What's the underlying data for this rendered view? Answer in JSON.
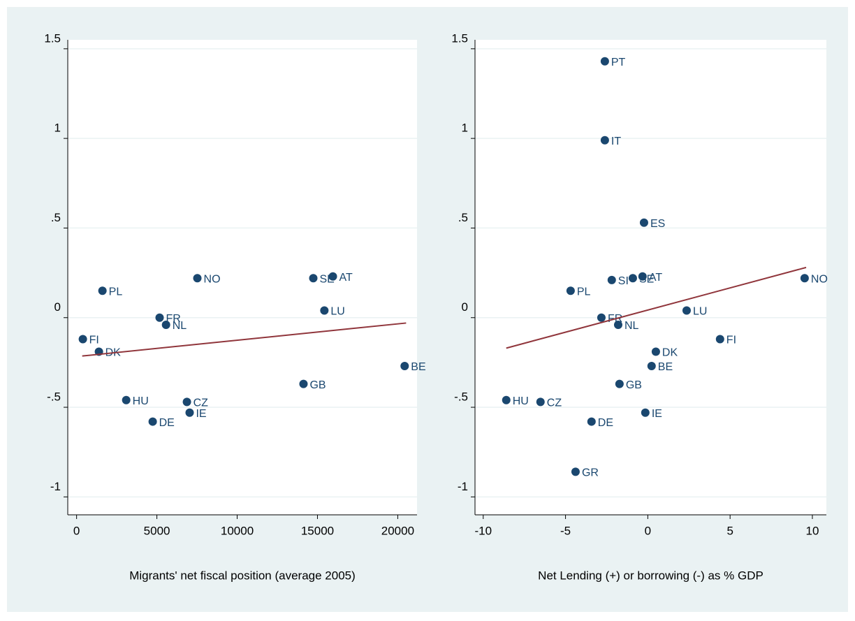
{
  "chart_data": [
    {
      "type": "scatter",
      "xlabel": "Migrants' net fiscal position (average 2005)",
      "xlim": [
        -550,
        21200
      ],
      "ylim": [
        -1.1,
        1.55
      ],
      "xticks": [
        0,
        5000,
        10000,
        15000,
        20000
      ],
      "yticks": [
        {
          "value": -1,
          "label": "-1"
        },
        {
          "value": -0.5,
          "label": "-.5"
        },
        0,
        {
          "value": 0.5,
          "label": ".5"
        },
        1,
        1.5
      ],
      "grid": true,
      "series": [
        {
          "color": "#1a476f",
          "labels": [
            "FI",
            "DK",
            "PL",
            "HU",
            "DE",
            "FR",
            "NL",
            "NO",
            "CZ",
            "IE",
            "GB",
            "SE",
            "AT",
            "LU",
            "BE"
          ],
          "x": [
            390,
            1390,
            1610,
            3090,
            4740,
            5170,
            5570,
            7520,
            6870,
            7040,
            14130,
            14740,
            15960,
            15430,
            20430
          ],
          "values": [
            -0.12,
            -0.19,
            0.15,
            -0.46,
            -0.58,
            0.0,
            -0.04,
            0.22,
            -0.47,
            -0.53,
            -0.37,
            0.22,
            0.23,
            0.04,
            -0.27
          ]
        }
      ],
      "fit_line": {
        "color": "#90353b",
        "x": [
          350,
          20520
        ],
        "values": [
          -0.214,
          -0.03
        ]
      }
    },
    {
      "type": "scatter",
      "xlabel": "Net Lending (+) or borrowing (-) as % GDP",
      "xlim": [
        -10.5,
        10.85
      ],
      "ylim": [
        -1.1,
        1.55
      ],
      "xticks": [
        -10,
        -5,
        0,
        5,
        10
      ],
      "yticks": [
        {
          "value": -1,
          "label": "-1"
        },
        {
          "value": -0.5,
          "label": "-.5"
        },
        0,
        {
          "value": 0.5,
          "label": ".5"
        },
        1,
        1.5
      ],
      "grid": true,
      "series": [
        {
          "color": "#1a476f",
          "labels": [
            "PT",
            "IT",
            "ES",
            "AT",
            "SE",
            "SI",
            "PL",
            "NO",
            "LU",
            "FR",
            "NL",
            "FI",
            "DK",
            "BE",
            "GB",
            "HU",
            "CZ",
            "IE",
            "DE",
            "GR"
          ],
          "x": [
            -2.61,
            -2.61,
            -0.23,
            -0.32,
            -0.91,
            -2.19,
            -4.69,
            9.53,
            2.36,
            -2.82,
            -1.8,
            4.39,
            0.49,
            0.23,
            -1.72,
            -8.6,
            -6.52,
            -0.15,
            -3.42,
            -4.39
          ],
          "values": [
            1.43,
            0.99,
            0.53,
            0.23,
            0.22,
            0.21,
            0.15,
            0.22,
            0.04,
            0.0,
            -0.04,
            -0.12,
            -0.19,
            -0.27,
            -0.37,
            -0.46,
            -0.47,
            -0.53,
            -0.58,
            -0.86
          ]
        }
      ],
      "fit_line": {
        "color": "#90353b",
        "x": [
          -8.6,
          9.62
        ],
        "values": [
          -0.17,
          0.28
        ]
      }
    }
  ]
}
